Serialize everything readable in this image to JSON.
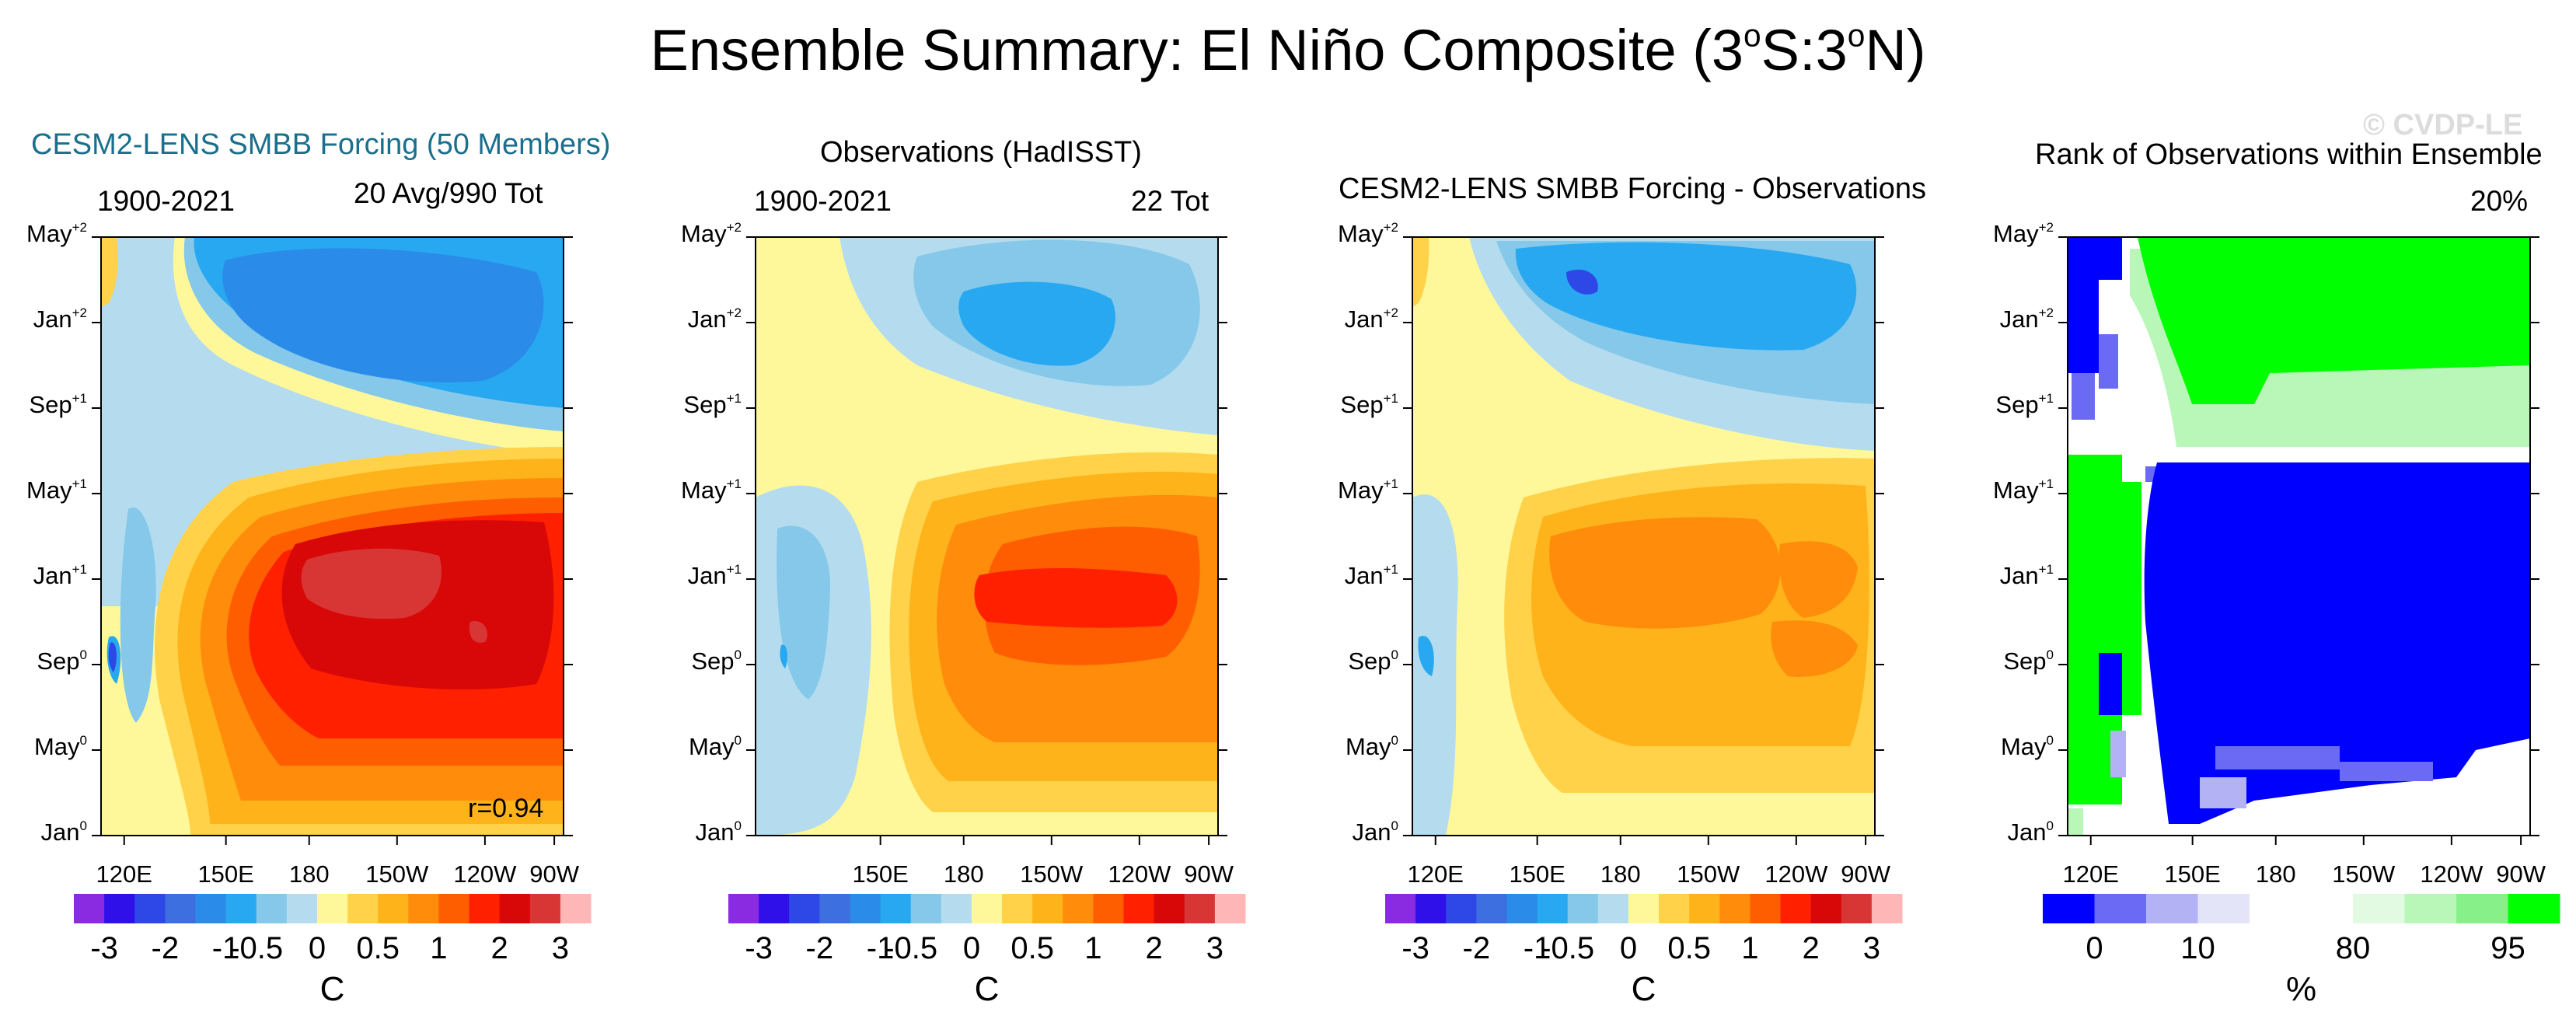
{
  "title": {
    "pre": "Ensemble Summary: El Niño Composite (3",
    "sup1": "o",
    "mid": "S:3",
    "sup2": "o",
    "post": "N)"
  },
  "watermark": "© CVDP-LE",
  "colors": {
    "model_title": "#1a6f8c",
    "watermark": "#d9d9d9"
  },
  "y_ticks": [
    {
      "m": "May",
      "s": "+2"
    },
    {
      "m": "Jan",
      "s": "+2"
    },
    {
      "m": "Sep",
      "s": "+1"
    },
    {
      "m": "May",
      "s": "+1"
    },
    {
      "m": "Jan",
      "s": "+1"
    },
    {
      "m": "Sep",
      "s": "0"
    },
    {
      "m": "May",
      "s": "0"
    },
    {
      "m": "Jan",
      "s": "0"
    }
  ],
  "panels": [
    {
      "title": "CESM2-LENS SMBB Forcing (50 Members)",
      "left": "1900-2021",
      "right": "20 Avg/990 Tot",
      "corr": "r=0.94",
      "x_ticks": [
        "120E",
        "150E",
        "180",
        "150W",
        "120W",
        "90W"
      ]
    },
    {
      "title": "Observations (HadISST)",
      "left": "1900-2021",
      "right": "22 Tot",
      "x_ticks": [
        "150E",
        "180",
        "150W",
        "120W",
        "90W"
      ]
    },
    {
      "title": "CESM2-LENS SMBB Forcing - Observations",
      "x_ticks": [
        "120E",
        "150E",
        "180",
        "150W",
        "120W",
        "90W"
      ]
    },
    {
      "title": "Rank of Observations within Ensemble",
      "right": "20%",
      "x_ticks": [
        "120E",
        "150E",
        "180",
        "150W",
        "120W",
        "90W"
      ]
    }
  ],
  "colorbar_sst": {
    "colors": [
      "#8a2be2",
      "#3010e8",
      "#2d48e6",
      "#3d6fe0",
      "#2a8ce8",
      "#28a8f0",
      "#85c8ea",
      "#b5dcee",
      "#fff89a",
      "#ffd24a",
      "#ffb31a",
      "#ff8c0a",
      "#ff5e00",
      "#ff2000",
      "#d80808",
      "#d83535",
      "#ffb6b6"
    ],
    "labels": [
      "-3",
      "-2",
      "-1",
      "-0.5",
      "0",
      "0.5",
      "1",
      "2",
      "3"
    ],
    "unit": "C"
  },
  "colorbar_rank": {
    "colors": [
      "#0000ff",
      "#6a6af5",
      "#b2b2f5",
      "#e4e4f8",
      "#ffffff",
      "#ffffff",
      "#e2fae2",
      "#b9f7b9",
      "#88f088",
      "#00ff00"
    ],
    "labels": [
      "0",
      "10",
      "80",
      "95"
    ],
    "unit": "%"
  },
  "chart_data": [
    {
      "type": "heatmap",
      "name": "CESM2-LENS SMBB Forcing (50 Members)",
      "units": "C",
      "x_range": [
        "120E",
        "80W"
      ],
      "y_range": [
        "Jan0",
        "May+2"
      ],
      "features": {
        "min_anomaly": -1.5,
        "max_anomaly": 2.5,
        "peak_time": "Nov0-Jan+1",
        "peak_longitude": "150W-100W"
      }
    },
    {
      "type": "heatmap",
      "name": "Observations (HadISST)",
      "units": "C",
      "features": {
        "min_anomaly": -1,
        "max_anomaly": 2,
        "peak_time": "Dec0-Jan+1",
        "peak_longitude": "155W-95W"
      }
    },
    {
      "type": "heatmap",
      "name": "CESM2-LENS SMBB Forcing - Observations",
      "units": "C"
    },
    {
      "type": "heatmap",
      "name": "Rank of Observations within Ensemble",
      "units": "%",
      "summary": "20%"
    }
  ]
}
